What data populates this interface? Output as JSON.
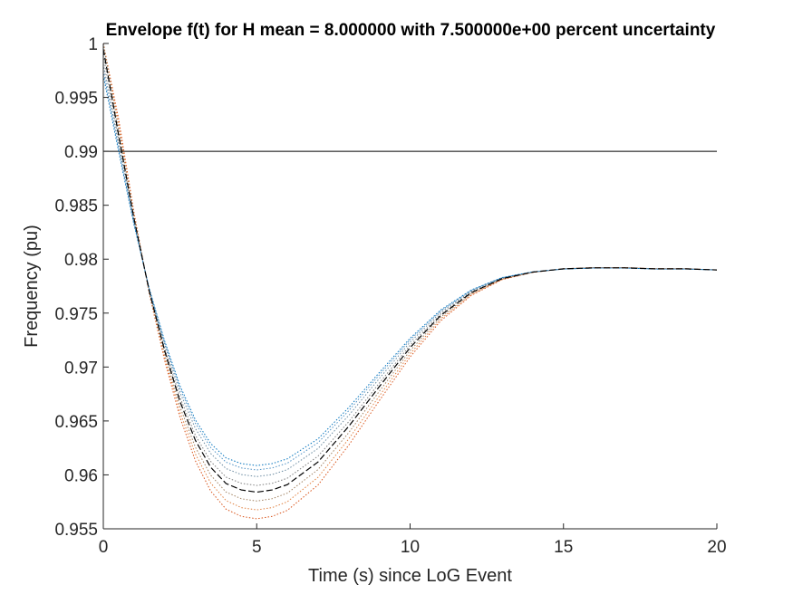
{
  "chart_data": {
    "type": "line",
    "title": "Envelope f(t) for H mean = 8.000000 with 7.500000e+00 percent uncertainty",
    "xlabel": "Time (s) since LoG Event",
    "ylabel": "Frequency (pu)",
    "xlim": [
      0,
      20
    ],
    "ylim": [
      0.955,
      1.0
    ],
    "xticks": [
      0,
      5,
      10,
      15,
      20
    ],
    "xtick_labels": [
      "0",
      "5",
      "10",
      "15",
      "20"
    ],
    "yticks": [
      0.955,
      0.96,
      0.965,
      0.97,
      0.975,
      0.98,
      0.985,
      0.99,
      0.995,
      1.0
    ],
    "ytick_labels": [
      "0.955",
      "0.96",
      "0.965",
      "0.97",
      "0.975",
      "0.98",
      "0.985",
      "0.99",
      "0.995",
      "1"
    ],
    "grid": false,
    "legend": "none",
    "reference_line": {
      "y": 0.99,
      "color": "#000000"
    },
    "mean_curve": {
      "style": "dashed",
      "color": "#000000",
      "x": [
        0,
        0.5,
        1,
        1.5,
        2,
        2.5,
        3,
        3.5,
        4,
        4.5,
        5,
        5.5,
        6,
        7,
        8,
        9,
        10,
        11,
        12,
        13,
        14,
        15,
        16,
        17,
        18,
        19,
        20
      ],
      "y": [
        0.9995,
        0.9915,
        0.9838,
        0.977,
        0.9715,
        0.9668,
        0.9632,
        0.9607,
        0.9592,
        0.9586,
        0.9584,
        0.9586,
        0.9591,
        0.9612,
        0.9645,
        0.9682,
        0.9718,
        0.9748,
        0.9769,
        0.9782,
        0.9788,
        0.9791,
        0.9792,
        0.9792,
        0.9791,
        0.9791,
        0.979
      ]
    },
    "envelope_curves": {
      "style": "dotted",
      "colors": [
        "#d95319",
        "#e08040",
        "#a08060",
        "#7f7f7f",
        "#6a8aa0",
        "#4d90c4",
        "#0072bd"
      ],
      "scales": [
        1.12,
        1.08,
        1.04,
        0.97,
        0.93,
        0.9,
        0.88
      ]
    }
  }
}
